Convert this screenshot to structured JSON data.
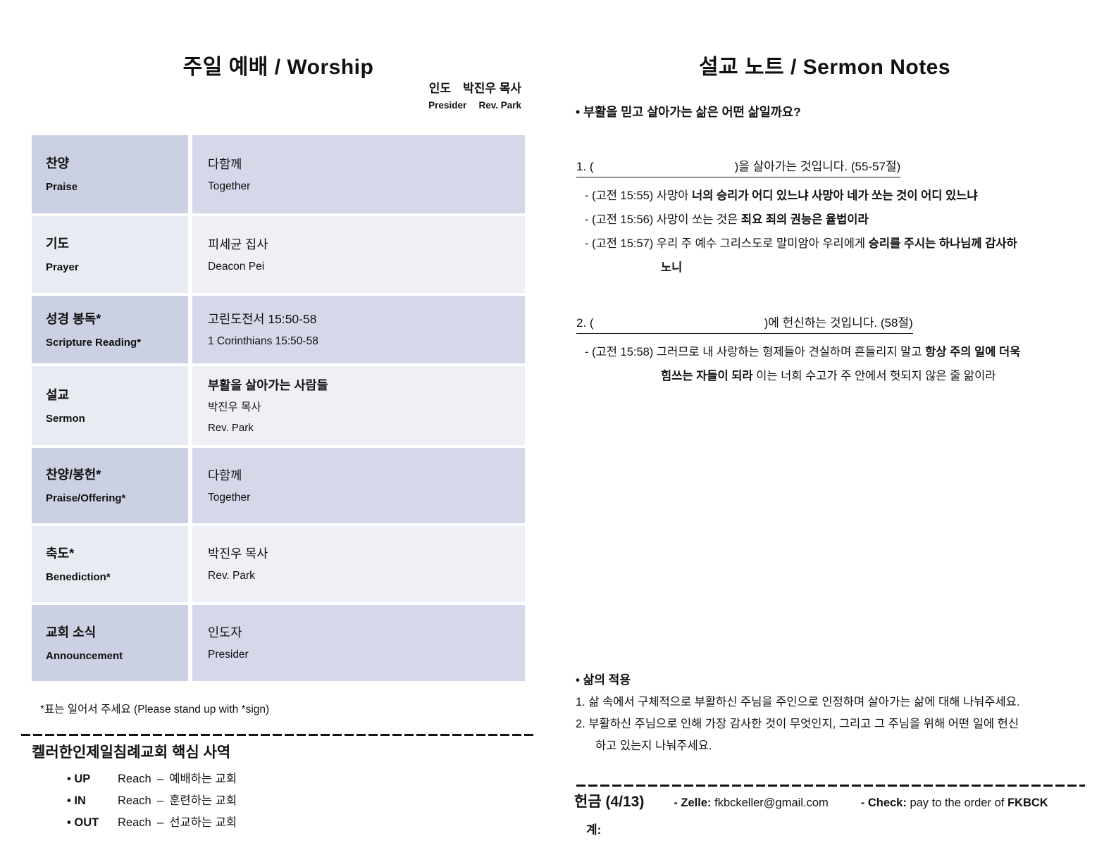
{
  "worship": {
    "title": "주일 예배 / Worship",
    "presider_ko": "인도 박진우 목사",
    "presider_en": "Presider  Rev. Park",
    "rows": [
      {
        "ko": "찬양",
        "en": "Praise",
        "l1": "다함께",
        "l2": "Together"
      },
      {
        "ko": "기도",
        "en": "Prayer",
        "l1": "피세균 집사",
        "l2": "Deacon Pei"
      },
      {
        "ko": "성경 봉독*",
        "en": "Scripture Reading*",
        "l1": "고린도전서 15:50-58",
        "l2": "1 Corinthians 15:50-58"
      },
      {
        "ko": "설교",
        "en": "Sermon",
        "l1": "부활을 살아가는 사람들",
        "l2": "박진우 목사",
        "l3": "Rev. Park"
      },
      {
        "ko": "찬양/봉헌*",
        "en": "Praise/Offering*",
        "l1": "다함께",
        "l2": "Together"
      },
      {
        "ko": "축도*",
        "en": "Benediction*",
        "l1": "박진우 목사",
        "l2": "Rev. Park"
      },
      {
        "ko": "교회 소식",
        "en": "Announcement",
        "l1": "인도자",
        "l2": "Presider"
      }
    ],
    "stand_note": "*표는 일어서 주세요 (Please stand up with *sign)",
    "ministry": {
      "heading": "켈러한인제일침례교회 핵심 사역",
      "items": [
        {
          "key": "• UP",
          "rest": "Reach – 예배하는 교회"
        },
        {
          "key": "• IN",
          "rest": "Reach – 훈련하는 교회"
        },
        {
          "key": "• OUT",
          "rest": "Reach – 선교하는 교회"
        }
      ]
    }
  },
  "sermon": {
    "title": "설교 노트 / Sermon Notes",
    "question": "• 부활을 믿고 살아가는 삶은 어떤 삶일까요?",
    "points": [
      {
        "pre": "1. (",
        "suffix": ")을 살아가는 것입니다. (55-57절)",
        "lines": [
          {
            "segs": [
              {
                "t": "- (고전 15:55) 사망아 "
              },
              {
                "t": "너의 승리가 어디 있느냐 사망아 네가 쏘는 것이 어디 있느냐",
                "b": true
              }
            ]
          },
          {
            "segs": [
              {
                "t": "- (고전 15:56) 사망이 쏘는 것은 "
              },
              {
                "t": "죄요 죄의 권능은 율법이라",
                "b": true
              }
            ]
          },
          {
            "segs": [
              {
                "t": "- (고전 15:57) 우리 주 예수 그리스도로 말미암아 우리에게 "
              },
              {
                "t": "승리를 주시는 하나님께 감사하",
                "b": true
              }
            ]
          },
          {
            "ind": 1,
            "segs": [
              {
                "t": "노니",
                "b": true
              }
            ]
          }
        ]
      },
      {
        "pre": "2. (",
        "suffix": ")에 헌신하는 것입니다. (58절)",
        "lines": [
          {
            "segs": [
              {
                "t": "- (고전 15:58) 그러므로 내 사랑하는 형제들아 견실하며 흔들리지 말고 "
              },
              {
                "t": "항상 주의 일에 더욱",
                "b": true
              }
            ]
          },
          {
            "ind": 1,
            "segs": [
              {
                "t": "힘쓰는 자들이 되라",
                "b": true
              },
              {
                "t": " 이는 너희 수고가 주 안에서 헛되지 않은 줄 앎이라"
              }
            ]
          }
        ]
      }
    ],
    "application": {
      "heading": "• 삶의 적용",
      "lines": [
        {
          "segs": [
            {
              "t": "1. 삶 속에서 구체적으로 부활하신 주님을 주인으로 인정하며 살아가는 삶에 대해 나눠주세요."
            }
          ]
        },
        {
          "segs": [
            {
              "t": "2. 부활하신 주님으로 인해 가장 감사한 것이 무엇인지, 그리고 그 주님을 위해 어떤 일에 헌신"
            }
          ]
        },
        {
          "ind": 2,
          "segs": [
            {
              "t": "하고 있는지 나눠주세요."
            }
          ]
        }
      ]
    },
    "offering": {
      "label": "헌금 (4/13)",
      "zelle_label": "- Zelle:",
      "zelle_value": " fkbckeller@gmail.com",
      "check_label": "- Check:",
      "check_value": " pay to the order of ",
      "check_org": "FKBCK",
      "account": "계:"
    }
  }
}
